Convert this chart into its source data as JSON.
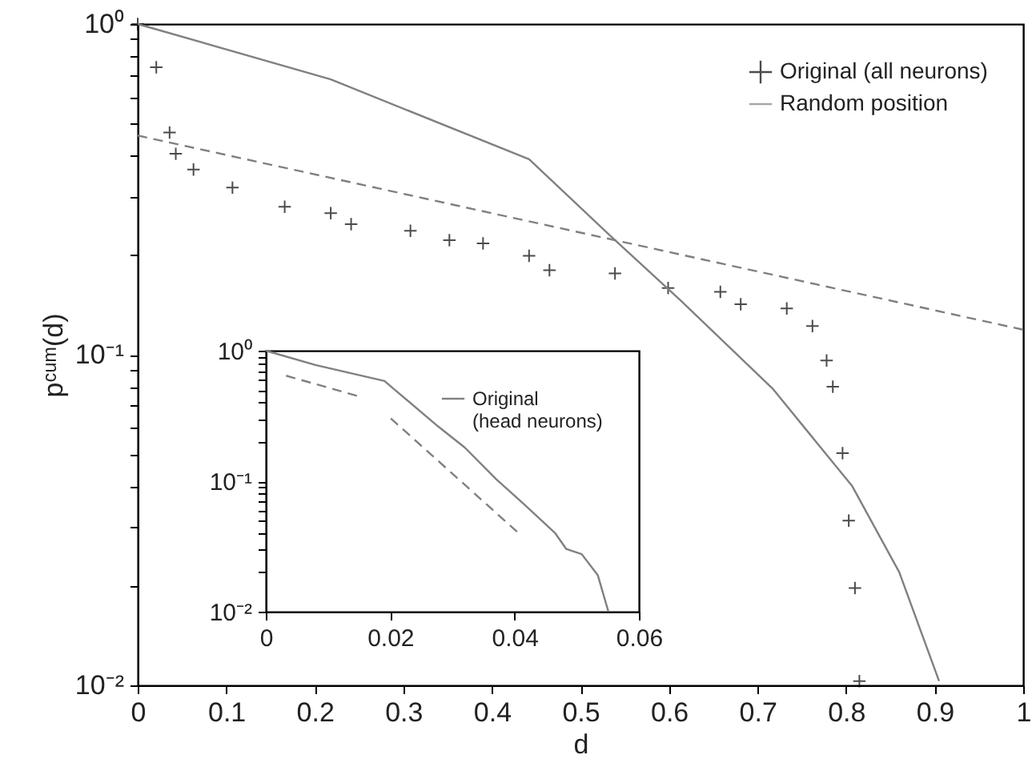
{
  "chart_data": [
    {
      "type": "scatter",
      "xlabel": "d",
      "ylabel": "pᶜᵘᵐ(d)",
      "log": "y",
      "legend": "top right",
      "xlim": [
        0,
        1
      ],
      "ylim": [
        0.01,
        1
      ],
      "xticks": [
        0,
        0.1,
        0.2,
        0.3,
        0.4,
        0.5,
        0.6,
        0.7,
        0.8,
        0.9,
        1
      ],
      "yticks": [
        {
          "value": 0.01,
          "label": "10⁻²"
        },
        {
          "value": 0.02,
          "label": null
        },
        {
          "value": 0.03,
          "label": null
        },
        {
          "value": 0.04,
          "label": null
        },
        {
          "value": 0.05,
          "label": null
        },
        {
          "value": 0.06,
          "label": null
        },
        {
          "value": 0.07,
          "label": null
        },
        {
          "value": 0.08,
          "label": null
        },
        {
          "value": 0.09,
          "label": null
        },
        {
          "value": 0.1,
          "label": "10⁻¹"
        },
        {
          "value": 0.2,
          "label": null
        },
        {
          "value": 0.3,
          "label": null
        },
        {
          "value": 0.4,
          "label": null
        },
        {
          "value": 0.5,
          "label": null
        },
        {
          "value": 0.6,
          "label": null
        },
        {
          "value": 0.7,
          "label": null
        },
        {
          "value": 0.8,
          "label": null
        },
        {
          "value": 0.9,
          "label": null
        },
        {
          "value": 1,
          "label": "10⁰"
        }
      ],
      "series": [
        {
          "name": "Original (all neurons)",
          "marker": "cross",
          "color": "#000000",
          "x": [
            0,
            0.021,
            0.036,
            0.043,
            0.063,
            0.107,
            0.166,
            0.218,
            0.241,
            0.308,
            0.352,
            0.39,
            0.442,
            0.465,
            0.539,
            0.599,
            0.658,
            0.681,
            0.733,
            0.762,
            0.778,
            0.785,
            0.796,
            0.803,
            0.81,
            0.815
          ],
          "values": [
            1,
            0.74,
            0.47,
            0.405,
            0.363,
            0.32,
            0.28,
            0.268,
            0.248,
            0.237,
            0.222,
            0.217,
            0.199,
            0.18,
            0.176,
            0.159,
            0.155,
            0.142,
            0.138,
            0.122,
            0.096,
            0.08,
            0.0504,
            0.0315,
            0.0197,
            0.0103
          ]
        },
        {
          "name": "Random position",
          "type": "line",
          "color": "#808080",
          "x": [
            0,
            0.218,
            0.442,
            0.539,
            0.613,
            0.717,
            0.807,
            0.86,
            0.905
          ],
          "values": [
            1,
            0.68,
            0.39,
            0.222,
            0.146,
            0.079,
            0.04,
            0.022,
            0.0103
          ]
        },
        {
          "type": "line",
          "line_style": "dashed",
          "color": "#808080",
          "x": [
            0,
            1
          ],
          "values": [
            0.46,
            0.119
          ]
        }
      ]
    },
    {
      "type": "line",
      "log": "y",
      "legend": "top right",
      "xlim": [
        0,
        0.06
      ],
      "ylim": [
        0.01,
        1
      ],
      "xticks": [
        0,
        0.02,
        0.04,
        0.06
      ],
      "yticks": [
        {
          "value": 0.01,
          "label": "10⁻²"
        },
        {
          "value": 0.02,
          "label": null
        },
        {
          "value": 0.03,
          "label": null
        },
        {
          "value": 0.04,
          "label": null
        },
        {
          "value": 0.05,
          "label": null
        },
        {
          "value": 0.06,
          "label": null
        },
        {
          "value": 0.07,
          "label": null
        },
        {
          "value": 0.08,
          "label": null
        },
        {
          "value": 0.09,
          "label": null
        },
        {
          "value": 0.1,
          "label": "10⁻¹"
        },
        {
          "value": 0.2,
          "label": null
        },
        {
          "value": 0.3,
          "label": null
        },
        {
          "value": 0.4,
          "label": null
        },
        {
          "value": 0.5,
          "label": null
        },
        {
          "value": 0.6,
          "label": null
        },
        {
          "value": 0.7,
          "label": null
        },
        {
          "value": 0.8,
          "label": null
        },
        {
          "value": 0.9,
          "label": null
        },
        {
          "value": 1,
          "label": "10⁰"
        }
      ],
      "series": [
        {
          "name": "Original (head neurons)",
          "color": "#808080",
          "x": [
            0,
            0.00797,
            0.0191,
            0.0201,
            0.0277,
            0.032,
            0.0371,
            0.0414,
            0.0465,
            0.0483,
            0.0508,
            0.0534,
            0.0551
          ],
          "values": [
            1,
            0.776,
            0.585,
            0.533,
            0.263,
            0.181,
            0.103,
            0.0674,
            0.0402,
            0.0303,
            0.0276,
            0.019,
            0.01
          ]
        },
        {
          "line_style": "dashed",
          "color": "#808080",
          "x": [
            0.00326,
            0.0153
          ],
          "values": [
            0.643,
            0.442
          ]
        },
        {
          "line_style": "dashed",
          "color": "#808080",
          "x": [
            0.0201,
            0.0404
          ],
          "values": [
            0.303,
            0.041
          ]
        }
      ]
    }
  ]
}
